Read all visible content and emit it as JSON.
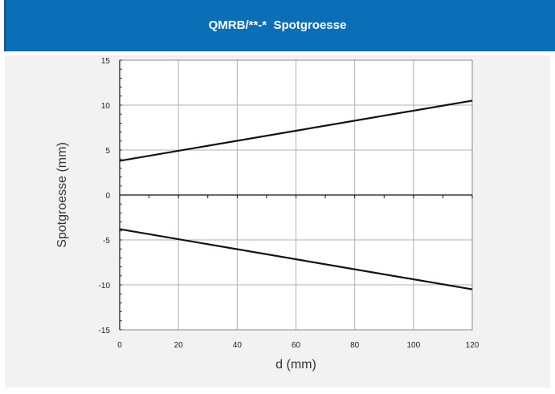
{
  "chart_data": {
    "type": "line",
    "title": "QMRB/**-*  Spotgroesse",
    "xlabel": "d (mm)",
    "ylabel": "Spotgroesse (mm)",
    "xlim": [
      0,
      120
    ],
    "ylim": [
      -15,
      15
    ],
    "x_ticks": [
      0,
      20,
      40,
      60,
      80,
      100,
      120
    ],
    "y_ticks": [
      -15,
      -10,
      -5,
      0,
      5,
      10,
      15
    ],
    "grid": true,
    "legend": "none",
    "series": [
      {
        "x": [
          0,
          120
        ],
        "y": [
          3.8,
          10.5
        ]
      },
      {
        "x": [
          0,
          120
        ],
        "y": [
          -3.8,
          -10.5
        ]
      }
    ],
    "colors": {
      "header": "#0a6fb6",
      "line": "#111111",
      "grid": "#b0b0b0",
      "plot_bg": "#f2f2f2"
    }
  }
}
